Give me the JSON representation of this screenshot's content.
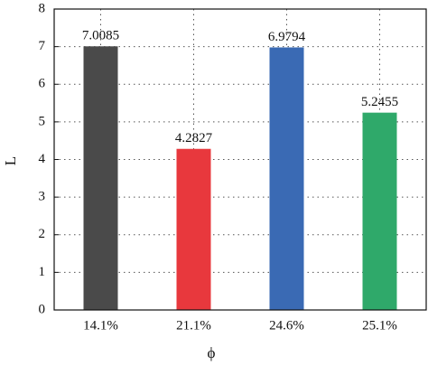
{
  "chart_data": {
    "type": "bar",
    "categories": [
      "14.1%",
      "21.1%",
      "24.6%",
      "25.1%"
    ],
    "values": [
      7.0085,
      4.2827,
      6.9794,
      5.2455
    ],
    "colors": [
      "#4a4a4a",
      "#e8383d",
      "#3a6ab4",
      "#2fa96a"
    ],
    "xlabel": "ϕ",
    "ylabel": "L",
    "ylim": [
      0,
      8
    ],
    "yticks": [
      0,
      1,
      2,
      3,
      4,
      5,
      6,
      7,
      8
    ],
    "grid": true
  }
}
